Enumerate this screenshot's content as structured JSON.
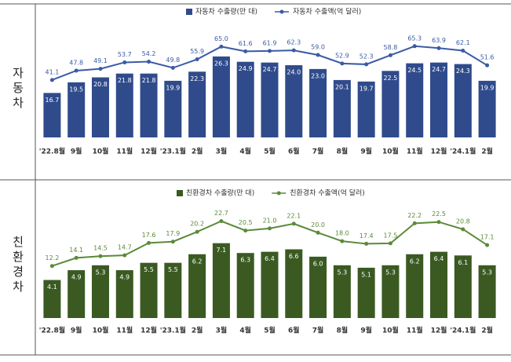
{
  "chart_data": [
    {
      "type": "combo",
      "label": "자동차",
      "categories": [
        "'22.8월",
        "9월",
        "10월",
        "11월",
        "12월",
        "'23.1월",
        "2월",
        "3월",
        "4월",
        "5월",
        "6월",
        "7월",
        "8월",
        "9월",
        "10월",
        "11월",
        "12월",
        "'24.1월",
        "2월"
      ],
      "ylim": [
        5,
        30
      ],
      "y2lim": [
        0,
        68
      ],
      "series": [
        {
          "name": "자동차 수출량(만 대)",
          "type": "bar",
          "color": "#2f4b8c",
          "values": [
            16.7,
            19.5,
            20.8,
            21.8,
            21.8,
            19.9,
            22.3,
            26.3,
            24.9,
            24.7,
            24.0,
            23.0,
            20.1,
            19.7,
            22.5,
            24.5,
            24.7,
            24.3,
            19.9
          ],
          "value_labels": [
            "16.7",
            "19.5",
            "20.8",
            "21.8",
            "21.8",
            "19.9",
            "22.3",
            "26.3",
            "24.9",
            "24.7",
            "24.0",
            "23.0",
            "20.1",
            "19.7",
            "22.5",
            "24.5",
            "24.7",
            "24.3",
            "19.9"
          ]
        },
        {
          "name": "자동차 수출액(억 달러)",
          "type": "line",
          "axis": "y2",
          "color": "#3a5ba6",
          "values": [
            41.1,
            47.8,
            49.1,
            53.7,
            54.2,
            49.8,
            55.9,
            65.0,
            61.6,
            61.9,
            62.3,
            59.0,
            52.9,
            52.3,
            58.8,
            65.3,
            63.9,
            62.1,
            51.6
          ],
          "value_labels": [
            "41.1",
            "47.8",
            "49.1",
            "53.7",
            "54.2",
            "49.8",
            "55.9",
            "65.0",
            "61.6",
            "61.9",
            "62.3",
            "59.0",
            "52.9",
            "52.3",
            "58.8",
            "65.3",
            "63.9",
            "62.1",
            "51.6"
          ]
        }
      ]
    },
    {
      "type": "combo",
      "label": "친환경차",
      "categories": [
        "'22.8월",
        "9월",
        "10월",
        "11월",
        "12월",
        "'23.1월",
        "2월",
        "3월",
        "4월",
        "5월",
        "6월",
        "7월",
        "8월",
        "9월",
        "10월",
        "11월",
        "12월",
        "'24.1월",
        "2월"
      ],
      "ylim": [
        1,
        9
      ],
      "y2lim": [
        0,
        23
      ],
      "series": [
        {
          "name": "친환경차 수출량(만 대)",
          "type": "bar",
          "color": "#3a5a22",
          "values": [
            4.1,
            4.9,
            5.3,
            4.9,
            5.5,
            5.5,
            6.2,
            7.1,
            6.3,
            6.4,
            6.6,
            6.0,
            5.3,
            5.1,
            5.3,
            6.2,
            6.4,
            6.1,
            5.3
          ],
          "value_labels": [
            "4.1",
            "4.9",
            "5.3",
            "4.9",
            "5.5",
            "5.5",
            "6.2",
            "7.1",
            "6.3",
            "6.4",
            "6.6",
            "6.0",
            "5.3",
            "5.1",
            "5.3",
            "6.2",
            "6.4",
            "6.1",
            "5.3"
          ]
        },
        {
          "name": "친환경차 수출액(억 달러)",
          "type": "line",
          "axis": "y2",
          "color": "#5b8a38",
          "values": [
            12.2,
            14.1,
            14.5,
            14.7,
            17.6,
            17.9,
            20.2,
            22.7,
            20.5,
            21.0,
            22.1,
            20.0,
            18.0,
            17.4,
            17.5,
            22.2,
            22.5,
            20.8,
            17.1
          ],
          "value_labels": [
            "12.2",
            "14.1",
            "14.5",
            "14.7",
            "17.6",
            "17.9",
            "20.2",
            "22.7",
            "20.5",
            "21.0",
            "22.1",
            "20.0",
            "18.0",
            "17.4",
            "17.5",
            "22.2",
            "22.5",
            "20.8",
            "17.1"
          ]
        }
      ]
    }
  ]
}
